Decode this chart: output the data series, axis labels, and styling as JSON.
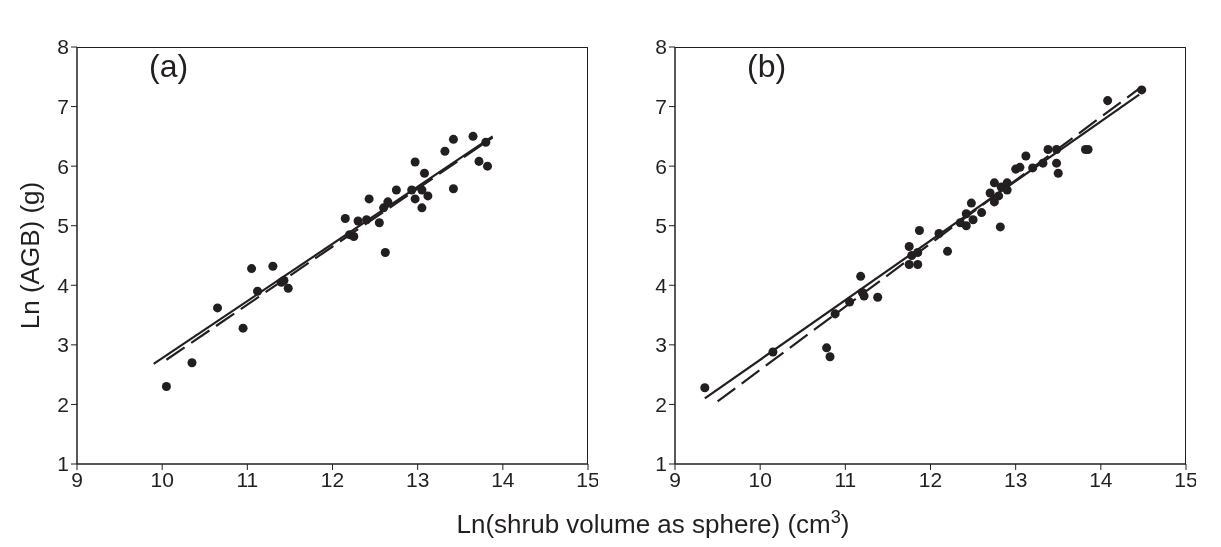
{
  "chart_data": [
    {
      "type": "scatter",
      "title": "(a)",
      "xlabel": "Ln(shrub volume as sphere) (cm$^{3}$)",
      "ylabel": "Ln (AGB) (g)",
      "xlim": [
        9,
        15
      ],
      "ylim": [
        1,
        8
      ],
      "xticks": [
        9,
        10,
        11,
        12,
        13,
        14,
        15
      ],
      "yticks": [
        1,
        2,
        3,
        4,
        5,
        6,
        7,
        8
      ],
      "grid": false,
      "marker": "circle",
      "series": [
        {
          "color": "#231f20",
          "x": [
            10.05,
            10.35,
            10.65,
            10.95,
            11.05,
            11.12,
            11.3,
            11.4,
            11.43,
            11.48,
            12.15,
            12.2,
            12.25,
            12.3,
            12.4,
            12.43,
            12.55,
            12.6,
            12.62,
            12.65,
            12.75,
            12.93,
            12.97,
            12.97,
            13.05,
            13.05,
            13.08,
            13.12,
            13.32,
            13.42,
            13.42,
            13.65,
            13.72,
            13.8,
            13.82
          ],
          "values": [
            2.3,
            2.7,
            3.62,
            3.28,
            4.28,
            3.9,
            4.32,
            4.05,
            4.08,
            3.95,
            5.12,
            4.85,
            4.82,
            5.08,
            5.1,
            5.45,
            5.05,
            5.3,
            4.55,
            5.4,
            5.6,
            5.6,
            6.07,
            5.45,
            5.3,
            5.6,
            5.88,
            5.5,
            6.25,
            6.45,
            5.62,
            6.5,
            6.08,
            6.4,
            6.0
          ]
        },
        {
          "type": "line",
          "color": "#231f20",
          "line_style": "solid",
          "marker": "none",
          "x": [
            9.9,
            13.88
          ],
          "values": [
            2.68,
            6.5
          ]
        },
        {
          "type": "line",
          "color": "#231f20",
          "line_style": "dashed",
          "marker": "none",
          "x": [
            10.05,
            13.88
          ],
          "values": [
            2.75,
            6.48
          ]
        }
      ]
    },
    {
      "type": "scatter",
      "title": "(b)",
      "xlim": [
        9,
        15
      ],
      "ylim": [
        1,
        8
      ],
      "xticks": [
        9,
        10,
        11,
        12,
        13,
        14,
        15
      ],
      "yticks": [
        1,
        2,
        3,
        4,
        5,
        6,
        7,
        8
      ],
      "grid": false,
      "marker": "circle",
      "series": [
        {
          "color": "#231f20",
          "x": [
            9.35,
            10.15,
            10.78,
            10.82,
            10.88,
            11.05,
            11.18,
            11.2,
            11.22,
            11.38,
            11.75,
            11.75,
            11.78,
            11.85,
            11.85,
            11.87,
            12.1,
            12.2,
            12.35,
            12.42,
            12.42,
            12.48,
            12.5,
            12.6,
            12.7,
            12.75,
            12.75,
            12.8,
            12.83,
            12.82,
            12.9,
            12.9,
            13.0,
            13.05,
            13.12,
            13.2,
            13.32,
            13.38,
            13.48,
            13.48,
            13.5,
            13.82,
            13.85,
            14.08,
            14.48
          ],
          "values": [
            2.28,
            2.88,
            2.95,
            2.8,
            3.52,
            3.72,
            4.15,
            3.88,
            3.82,
            3.8,
            4.65,
            4.35,
            4.5,
            4.55,
            4.35,
            4.92,
            4.87,
            4.57,
            5.05,
            5.2,
            5.0,
            5.38,
            5.1,
            5.22,
            5.55,
            5.72,
            5.4,
            5.5,
            5.65,
            4.98,
            5.6,
            5.72,
            5.95,
            5.98,
            6.17,
            5.97,
            6.05,
            6.28,
            6.28,
            6.05,
            5.88,
            6.28,
            6.28,
            7.1,
            7.28
          ]
        },
        {
          "type": "line",
          "color": "#231f20",
          "line_style": "solid",
          "marker": "none",
          "x": [
            9.35,
            14.45
          ],
          "values": [
            2.1,
            7.2
          ]
        },
        {
          "type": "line",
          "color": "#231f20",
          "line_style": "dashed",
          "marker": "none",
          "x": [
            9.5,
            14.45
          ],
          "values": [
            2.05,
            7.3
          ]
        }
      ]
    }
  ]
}
